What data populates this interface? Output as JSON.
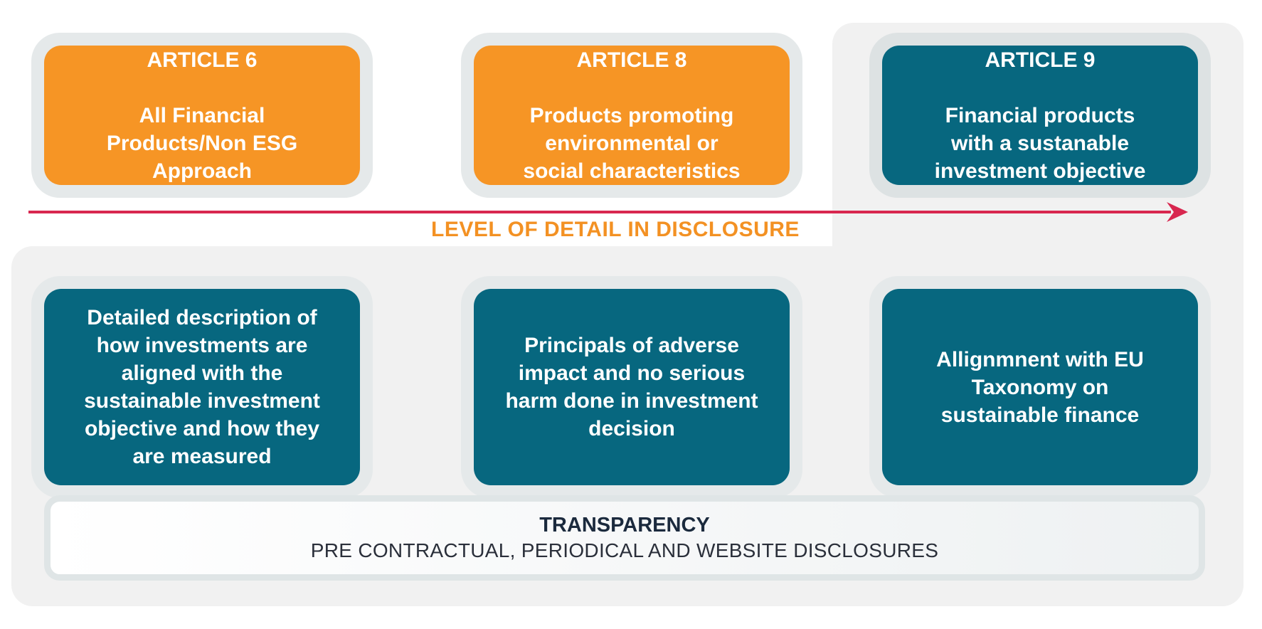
{
  "articles": [
    {
      "id": "article-6",
      "title": "ARTICLE 6",
      "description": "All Financial\nProducts/Non ESG\nApproach",
      "color": "#f69525"
    },
    {
      "id": "article-8",
      "title": "ARTICLE 8",
      "description": "Products promoting\nenvironmental or\nsocial characteristics",
      "color": "#f69525"
    },
    {
      "id": "article-9",
      "title": "ARTICLE 9",
      "description": "Financial products\nwith a sustanable\ninvestment objective",
      "color": "#07677f"
    }
  ],
  "axis": {
    "label": "LEVEL OF DETAIL IN DISCLOSURE",
    "arrow_color": "#d8274f",
    "label_color": "#f39123"
  },
  "requirements": [
    {
      "id": "detailed-description",
      "text": "Detailed description of\nhow investments are\naligned with the\nsustainable investment\nobjective and how they\nare measured"
    },
    {
      "id": "principals-adverse-impact",
      "text": "Principals of adverse\nimpact and no serious\nharm done in investment\ndecision"
    },
    {
      "id": "eu-taxonomy-alignment",
      "text": "Allignmnent with EU\nTaxonomy on\nsustainable finance"
    }
  ],
  "transparency": {
    "title": "TRANSPARENCY",
    "subtitle": "PRE CONTRACTUAL, PERIODICAL AND WEBSITE DISCLOSURES"
  },
  "colors": {
    "orange": "#f69525",
    "teal": "#07677f",
    "panel_grey": "#f1f1f1",
    "frame_grey": "#e5e9ea"
  }
}
